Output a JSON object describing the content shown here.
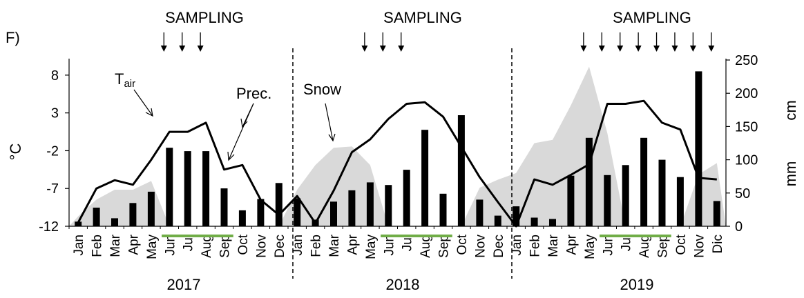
{
  "panel_label": "F)",
  "sampling_label": "SAMPLING",
  "annotations": {
    "tair_main": "T",
    "tair_sub": "air",
    "prec": "Prec.",
    "snow": "Snow"
  },
  "colors": {
    "snow_fill": "#d9d9d9",
    "bars": "#000000",
    "line": "#000000",
    "sampling_period": "#70ad47"
  },
  "chart_data": {
    "type": "bar+line+area",
    "categories": [
      "Jan",
      "Feb",
      "Mar",
      "Apr",
      "May",
      "Jun",
      "Jul",
      "Aug",
      "Sep",
      "Oct",
      "Nov",
      "Dec",
      "Jan",
      "Feb",
      "Mar",
      "Apr",
      "May",
      "Jun",
      "Jul",
      "Aug",
      "Sep",
      "Oct",
      "Nov",
      "Dec",
      "Jan",
      "Feb",
      "Mar",
      "Apr",
      "May",
      "Jun",
      "Jul",
      "Aug",
      "Sep",
      "Oct",
      "Nov",
      "Dic"
    ],
    "years": [
      "2017",
      "2018",
      "2019"
    ],
    "axes": {
      "left": {
        "label": "°C",
        "range": [
          -12,
          10
        ],
        "ticks": [
          8,
          3,
          -2,
          -7,
          -12
        ]
      },
      "right": {
        "label_cm": "cm",
        "label_mm": "mm",
        "range": [
          0,
          250
        ],
        "ticks": [
          250,
          200,
          150,
          100,
          50,
          0
        ]
      }
    },
    "series": [
      {
        "name": "T",
        "axis": "left",
        "kind": "line",
        "values": [
          -11.5,
          -7,
          -5.9,
          -6.5,
          -3.2,
          0.5,
          0.5,
          1.7,
          -4.5,
          -3.9,
          -8.5,
          -10.5,
          -8,
          -11.6,
          -7.3,
          -2.2,
          -0.5,
          2.2,
          4.2,
          4.4,
          2.5,
          -1.5,
          -5.5,
          -8.8,
          -12,
          -5.8,
          -6.5,
          -5.2,
          -3.8,
          4.2,
          4.2,
          4.6,
          1.7,
          0.8,
          -5.6,
          -5.8
        ]
      },
      {
        "name": "Prec.",
        "axis": "right",
        "kind": "bar",
        "values": [
          7,
          28,
          12,
          35,
          52,
          118,
          113,
          113,
          57,
          24,
          41,
          65,
          42,
          10,
          37,
          54,
          66,
          62,
          85,
          145,
          49,
          167,
          40,
          16,
          30,
          13,
          11,
          76,
          133,
          77,
          92,
          133,
          100,
          74,
          233,
          38
        ]
      },
      {
        "name": "Snow",
        "axis": "right",
        "kind": "area",
        "values": [
          15,
          40,
          55,
          55,
          68,
          0,
          0,
          0,
          0,
          0,
          0,
          0,
          55,
          92,
          118,
          120,
          92,
          0,
          0,
          0,
          0,
          0,
          58,
          70,
          80,
          125,
          130,
          182,
          240,
          140,
          0,
          0,
          0,
          0,
          78,
          95
        ]
      }
    ],
    "sampling_months": [
      [
        6,
        7,
        8
      ],
      [
        17,
        18,
        19
      ],
      [
        29,
        30,
        31,
        32,
        33,
        34,
        35,
        36
      ]
    ],
    "sampling_periods": [
      [
        5,
        9
      ],
      [
        17,
        21
      ],
      [
        29,
        33
      ]
    ],
    "grid": false,
    "legend": "none"
  }
}
